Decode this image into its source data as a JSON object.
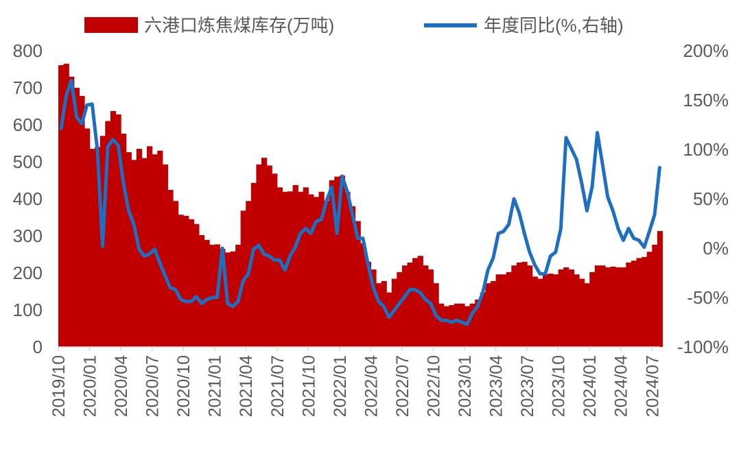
{
  "chart_data": {
    "type": "bar+line",
    "legend_position": "top",
    "grid": false,
    "colors": {
      "bar": "#C00000",
      "line": "#1E6FBF"
    },
    "x_ticks": [
      "2019/10",
      "2020/01",
      "2020/04",
      "2020/07",
      "2020/10",
      "2021/01",
      "2021/04",
      "2021/07",
      "2021/10",
      "2022/01",
      "2022/04",
      "2022/07",
      "2022/10",
      "2023/01",
      "2023/04",
      "2023/07",
      "2023/10",
      "2024/01",
      "2024/04",
      "2024/07"
    ],
    "left_axis": {
      "ylim": [
        0,
        800
      ],
      "ticks": [
        "0",
        "100",
        "200",
        "300",
        "400",
        "500",
        "600",
        "700",
        "800"
      ]
    },
    "right_axis": {
      "ylim": [
        -100,
        200
      ],
      "ticks": [
        "-100%",
        "-50%",
        "0%",
        "50%",
        "100%",
        "150%",
        "200%"
      ]
    },
    "dates": [
      "2019-10-01",
      "2019-10-16",
      "2019-11-01",
      "2019-11-16",
      "2019-12-01",
      "2019-12-16",
      "2020-01-01",
      "2020-01-16",
      "2020-02-01",
      "2020-02-16",
      "2020-03-01",
      "2020-03-16",
      "2020-04-01",
      "2020-04-16",
      "2020-05-01",
      "2020-05-16",
      "2020-06-01",
      "2020-06-16",
      "2020-07-01",
      "2020-07-16",
      "2020-08-01",
      "2020-08-16",
      "2020-09-01",
      "2020-09-16",
      "2020-10-01",
      "2020-10-16",
      "2020-11-01",
      "2020-11-16",
      "2020-12-01",
      "2020-12-16",
      "2021-01-01",
      "2021-01-16",
      "2021-02-01",
      "2021-02-16",
      "2021-03-01",
      "2021-03-16",
      "2021-04-01",
      "2021-04-16",
      "2021-05-01",
      "2021-05-16",
      "2021-06-01",
      "2021-06-16",
      "2021-07-01",
      "2021-07-16",
      "2021-08-01",
      "2021-08-16",
      "2021-09-01",
      "2021-09-16",
      "2021-10-01",
      "2021-10-16",
      "2021-11-01",
      "2021-11-16",
      "2021-12-01",
      "2021-12-16",
      "2022-01-01",
      "2022-01-16",
      "2022-02-01",
      "2022-02-16",
      "2022-03-01",
      "2022-03-16",
      "2022-04-01",
      "2022-04-16",
      "2022-05-01",
      "2022-05-16",
      "2022-06-01",
      "2022-06-16",
      "2022-07-01",
      "2022-07-16",
      "2022-08-01",
      "2022-08-16",
      "2022-09-01",
      "2022-09-16",
      "2022-10-01",
      "2022-10-16",
      "2022-11-01",
      "2022-11-16",
      "2022-12-01",
      "2022-12-16",
      "2023-01-01",
      "2023-01-16",
      "2023-02-01",
      "2023-02-16",
      "2023-03-01",
      "2023-03-16",
      "2023-04-01",
      "2023-04-16",
      "2023-05-01",
      "2023-05-16",
      "2023-06-01",
      "2023-06-16",
      "2023-07-01",
      "2023-07-16",
      "2023-08-01",
      "2023-08-16",
      "2023-09-01",
      "2023-09-16",
      "2023-10-01",
      "2023-10-16",
      "2023-11-01",
      "2023-11-16",
      "2023-12-01",
      "2023-12-16",
      "2024-01-01",
      "2024-01-16",
      "2024-02-01",
      "2024-02-16",
      "2024-03-01",
      "2024-03-16",
      "2024-04-01",
      "2024-04-16",
      "2024-05-01",
      "2024-05-16",
      "2024-06-01",
      "2024-06-16",
      "2024-07-01",
      "2024-07-16"
    ],
    "series": [
      {
        "name": "六港口炼焦煤库存(万吨)",
        "type": "bar",
        "axis": "left",
        "values": [
          761,
          765,
          730,
          700,
          678,
          590,
          535,
          540,
          570,
          610,
          637,
          628,
          576,
          526,
          505,
          535,
          510,
          542,
          520,
          530,
          493,
          424,
          394,
          357,
          354,
          345,
          332,
          302,
          289,
          276,
          277,
          265,
          255,
          258,
          276,
          368,
          394,
          443,
          493,
          511,
          490,
          468,
          431,
          419,
          420,
          437,
          419,
          431,
          412,
          405,
          419,
          395,
          450,
          460,
          463,
          419,
          380,
          340,
          280,
          230,
          209,
          172,
          178,
          147,
          184,
          202,
          220,
          228,
          240,
          246,
          220,
          209,
          172,
          117,
          110,
          113,
          117,
          117,
          110,
          117,
          128,
          147,
          172,
          178,
          196,
          196,
          202,
          220,
          228,
          230,
          220,
          190,
          184,
          196,
          198,
          196,
          209,
          215,
          209,
          196,
          184,
          172,
          202,
          220,
          220,
          215,
          217,
          215,
          215,
          228,
          233,
          240,
          243,
          257,
          276,
          313
        ]
      },
      {
        "name": "年度同比(%,右轴)",
        "type": "line",
        "axis": "right",
        "values": [
          120,
          154,
          170,
          133,
          126,
          145,
          146,
          100,
          2,
          103,
          110,
          104,
          66,
          38,
          24,
          -1,
          -8,
          -6,
          -1,
          -15,
          -28,
          -40,
          -42,
          -52,
          -54,
          -54,
          -49,
          -56,
          -52,
          -50,
          -50,
          0,
          -56,
          -59,
          -54,
          -33,
          -26,
          -1,
          3,
          -6,
          -8,
          -12,
          -12,
          -22,
          -8,
          1,
          15,
          20,
          15,
          27,
          29,
          48,
          62,
          15,
          73,
          57,
          34,
          10,
          10,
          -17,
          -40,
          -54,
          -59,
          -70,
          -63,
          -56,
          -49,
          -42,
          -42,
          -45,
          -52,
          -56,
          -68,
          -73,
          -73,
          -75,
          -73,
          -75,
          -77,
          -66,
          -59,
          -45,
          -22,
          -10,
          15,
          17,
          24,
          50,
          36,
          15,
          -4,
          -17,
          -26,
          -26,
          -8,
          -4,
          20,
          112,
          101,
          90,
          66,
          38,
          62,
          117,
          85,
          52,
          38,
          20,
          8,
          20,
          10,
          8,
          1,
          17,
          34,
          83
        ]
      }
    ]
  }
}
